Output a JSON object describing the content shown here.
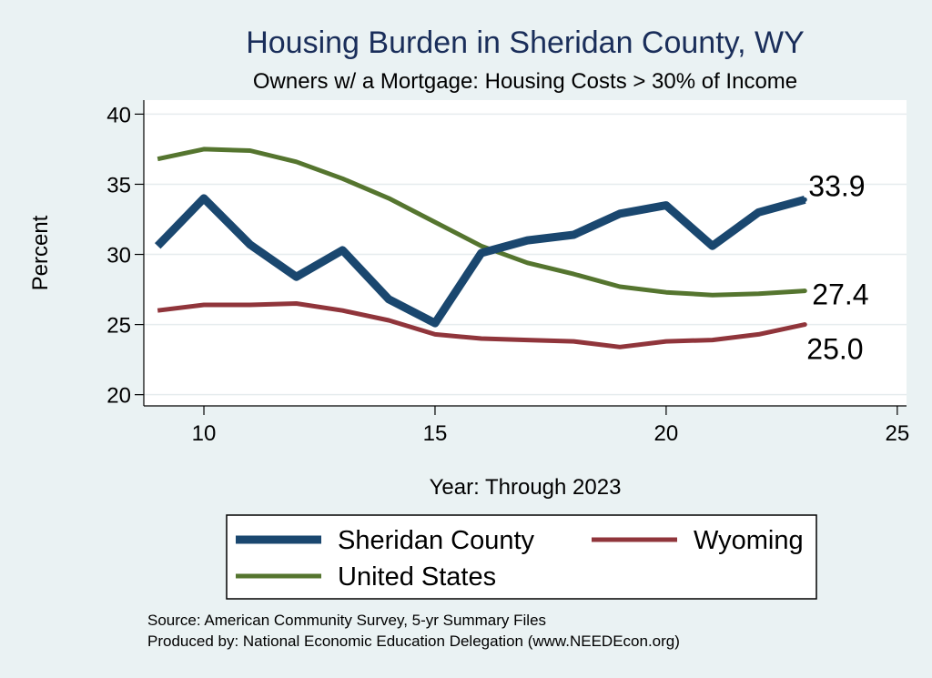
{
  "chart_data": {
    "type": "line",
    "title": "Housing Burden in Sheridan County, WY",
    "subtitle": "Owners w/ a Mortgage: Housing Costs > 30% of Income",
    "xlabel": "Year: Through 2023",
    "ylabel": "Percent",
    "xlim": [
      8.7,
      25.2
    ],
    "ylim": [
      19.2,
      41.0
    ],
    "xticks": [
      10,
      15,
      20,
      25
    ],
    "yticks": [
      20,
      25,
      30,
      35,
      40
    ],
    "x": [
      9,
      10,
      11,
      12,
      13,
      14,
      15,
      16,
      17,
      18,
      19,
      20,
      21,
      22,
      23
    ],
    "series": [
      {
        "name": "Sheridan County",
        "color": "#1a476f",
        "values": [
          30.6,
          34.0,
          30.7,
          28.4,
          30.3,
          26.8,
          25.1,
          30.1,
          31.0,
          31.4,
          32.9,
          33.5,
          30.6,
          33.0,
          33.9
        ],
        "end_label": "33.9"
      },
      {
        "name": "Wyoming",
        "color": "#90353b",
        "values": [
          26.0,
          26.4,
          26.4,
          26.5,
          26.0,
          25.3,
          24.3,
          24.0,
          23.9,
          23.8,
          23.4,
          23.8,
          23.9,
          24.3,
          25.0
        ],
        "end_label": "25.0"
      },
      {
        "name": "United States",
        "color": "#55752f",
        "values": [
          36.8,
          37.5,
          37.4,
          36.6,
          35.4,
          34.0,
          32.3,
          30.6,
          29.4,
          28.6,
          27.7,
          27.3,
          27.1,
          27.2,
          27.4
        ],
        "end_label": "27.4"
      }
    ],
    "legend": {
      "position": "bottom",
      "entries": [
        "Sheridan County",
        "Wyoming",
        "United States"
      ]
    },
    "grid": true
  },
  "source": {
    "line1": "Source: American Community Survey, 5-yr Summary Files",
    "line2": "Produced by: National Economic Education Delegation (www.NEEDEcon.org)"
  }
}
